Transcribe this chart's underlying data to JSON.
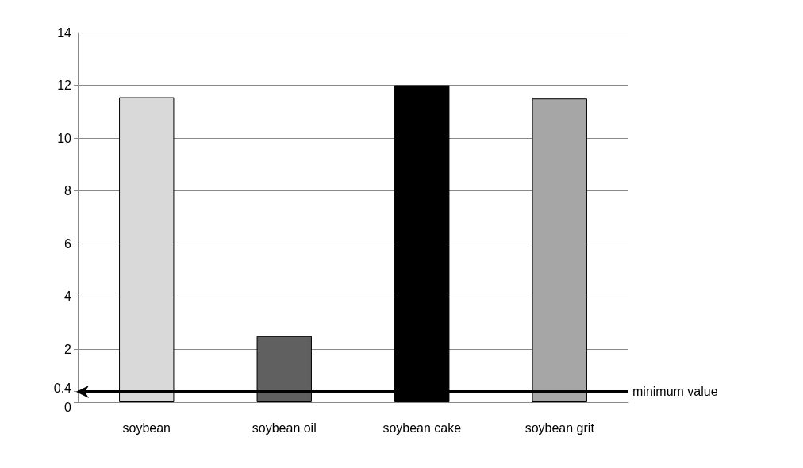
{
  "chart_data": {
    "type": "bar",
    "categories": [
      "soybean",
      "soybean oil",
      "soybean cake",
      "soybean grit"
    ],
    "values": [
      11.55,
      2.5,
      12,
      11.5
    ],
    "colors": [
      "#d9d9d9",
      "#606060",
      "#000000",
      "#a6a6a6"
    ],
    "ylim": [
      0,
      14
    ],
    "yticks": [
      0,
      0.4,
      2,
      4,
      6,
      8,
      10,
      12,
      14
    ],
    "grid": "y",
    "ref_lines": [
      {
        "axis": "y",
        "value": 0.4,
        "label": "minimum value",
        "color": "#000000"
      }
    ]
  }
}
